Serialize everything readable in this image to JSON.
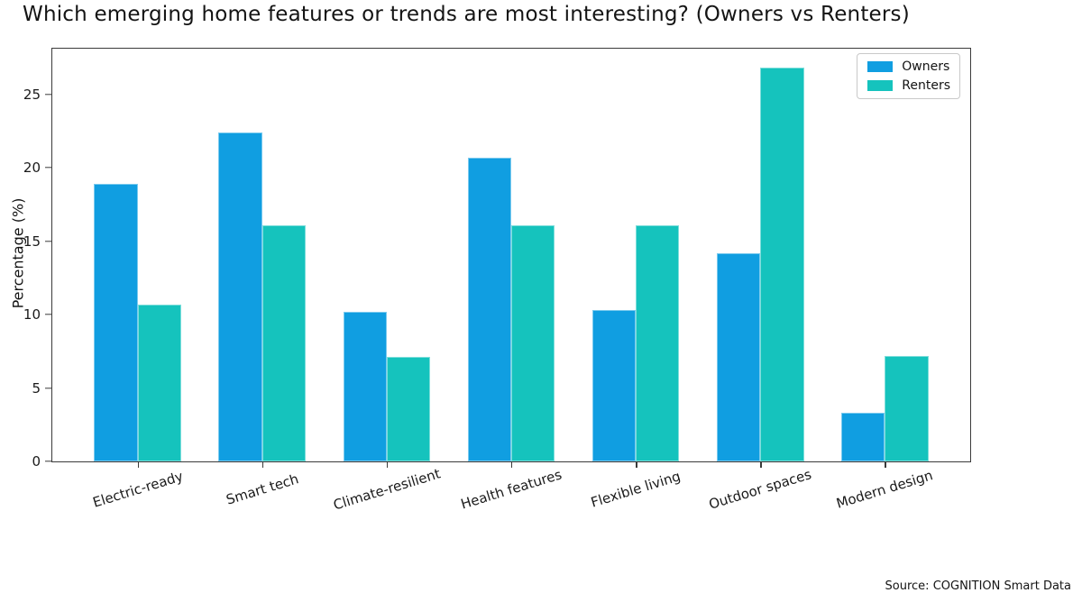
{
  "source_note": "Source: COGNITION Smart Data",
  "chart_data": {
    "type": "bar",
    "title": "Which emerging home features or trends are most interesting? (Owners vs Renters)",
    "categories": [
      "Electric-ready",
      "Smart tech",
      "Climate-resilient",
      "Health features",
      "Flexible living",
      "Outdoor spaces",
      "Modern design"
    ],
    "series": [
      {
        "name": "Owners",
        "color": "#109ee1",
        "values": [
          18.9,
          22.4,
          10.2,
          20.7,
          10.3,
          14.2,
          3.3
        ]
      },
      {
        "name": "Renters",
        "color": "#15c3bd",
        "values": [
          10.7,
          16.1,
          7.1,
          16.1,
          16.1,
          26.8,
          7.2
        ]
      }
    ],
    "xlabel": "",
    "ylabel": "Percentage (%)",
    "ylim": [
      0,
      28.1
    ],
    "yticks": [
      0,
      5,
      10,
      15,
      20,
      25
    ],
    "grid": false,
    "legend_position": "upper right",
    "bar_width_units": 0.35
  }
}
